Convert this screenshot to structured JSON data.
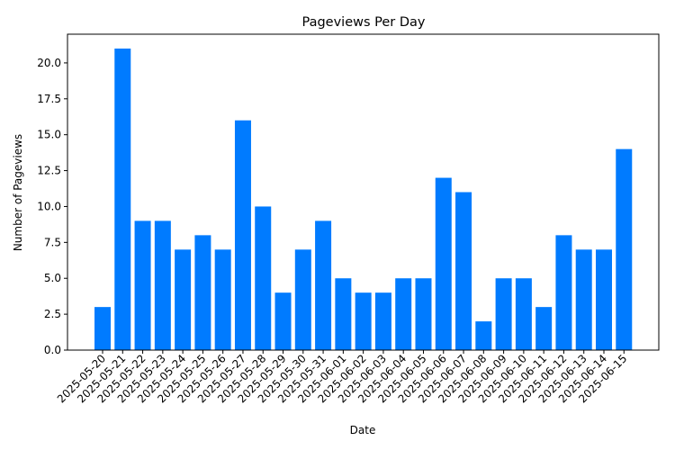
{
  "chart_data": {
    "type": "bar",
    "title": "Pageviews Per Day",
    "xlabel": "Date",
    "ylabel": "Number of Pageviews",
    "ylim": [
      0,
      22
    ],
    "yticks": [
      0.0,
      2.5,
      5.0,
      7.5,
      10.0,
      12.5,
      15.0,
      17.5,
      20.0
    ],
    "ytick_labels": [
      "0.0",
      "2.5",
      "5.0",
      "7.5",
      "10.0",
      "12.5",
      "15.0",
      "17.5",
      "20.0"
    ],
    "grid": false,
    "bar_color": "#007bff",
    "categories": [
      "2025-05-20",
      "2025-05-21",
      "2025-05-22",
      "2025-05-23",
      "2025-05-24",
      "2025-05-25",
      "2025-05-26",
      "2025-05-27",
      "2025-05-28",
      "2025-05-29",
      "2025-05-30",
      "2025-05-31",
      "2025-06-01",
      "2025-06-02",
      "2025-06-03",
      "2025-06-04",
      "2025-06-05",
      "2025-06-06",
      "2025-06-07",
      "2025-06-08",
      "2025-06-09",
      "2025-06-10",
      "2025-06-11",
      "2025-06-12",
      "2025-06-13",
      "2025-06-14",
      "2025-06-15"
    ],
    "values": [
      3,
      21,
      9,
      9,
      7,
      8,
      7,
      16,
      10,
      4,
      7,
      9,
      5,
      4,
      4,
      5,
      5,
      12,
      11,
      2,
      5,
      5,
      3,
      8,
      7,
      7,
      14
    ]
  }
}
